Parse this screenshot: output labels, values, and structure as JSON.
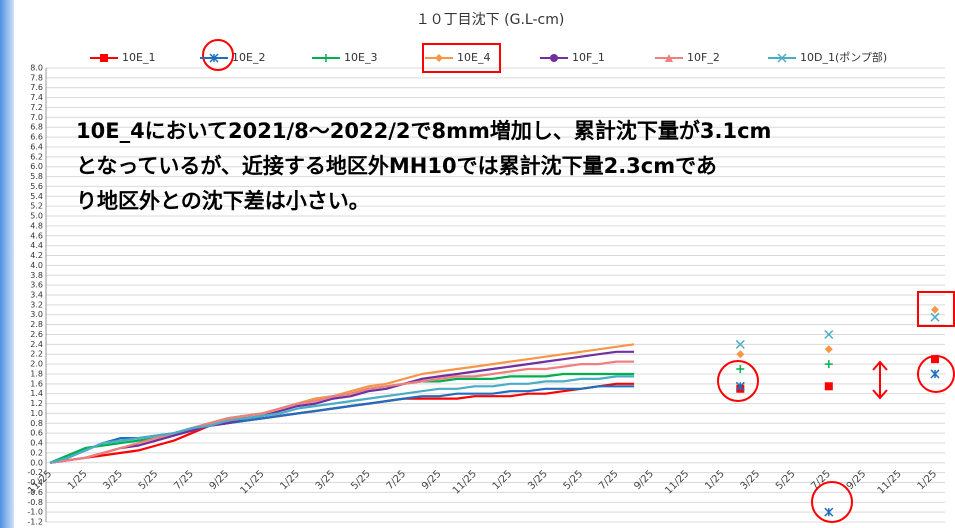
{
  "chart_data": {
    "type": "line",
    "title": "１０丁目沈下 (G.L-cm)",
    "annotation": [
      "10E_4において2021/8～2022/2で8mm増加し、累計沈下量が3.1cm",
      "となっているが、近接する地区外MH10では累計沈下量2.3cmであ",
      "り地区外との沈下差は小さい。"
    ],
    "categories": [
      "11/25",
      null,
      "1/25",
      null,
      "3/25",
      null,
      "5/25",
      null,
      "7/25",
      null,
      "9/25",
      null,
      "11/25",
      null,
      "1/25",
      null,
      "3/25",
      null,
      "5/25",
      null,
      "7/25",
      null,
      "9/25",
      null,
      "11/25",
      null,
      "1/25",
      null,
      "3/25",
      null,
      "5/25",
      null,
      "7/25",
      null,
      "9/25",
      null,
      "11/25",
      null,
      "1/25",
      null,
      "3/25",
      null,
      "5/25",
      null,
      "7/25",
      null,
      "9/25",
      null,
      "11/25",
      null,
      "1/25"
    ],
    "series": [
      {
        "name": "10E_1",
        "color": "#ff0000",
        "marker": "square",
        "values": [
          0,
          0.05,
          0.1,
          0.15,
          0.2,
          0.25,
          0.35,
          0.45,
          0.6,
          0.75,
          0.8,
          0.85,
          0.9,
          0.95,
          1.0,
          1.05,
          1.1,
          1.15,
          1.2,
          1.25,
          1.3,
          1.3,
          1.3,
          1.3,
          1.35,
          1.35,
          1.35,
          1.4,
          1.4,
          1.45,
          1.5,
          1.55,
          1.6,
          1.6,
          null,
          null,
          null,
          null,
          null,
          1.5,
          null,
          null,
          null,
          null,
          1.55,
          null,
          null,
          null,
          null,
          null,
          2.1
        ]
      },
      {
        "name": "10E_2",
        "color": "#1f6fc0",
        "marker": "star",
        "values": [
          0,
          0.1,
          0.25,
          0.4,
          0.5,
          0.5,
          0.55,
          0.6,
          0.65,
          0.75,
          0.8,
          0.85,
          0.9,
          0.95,
          1.0,
          1.05,
          1.1,
          1.15,
          1.2,
          1.25,
          1.3,
          1.35,
          1.35,
          1.4,
          1.4,
          1.4,
          1.45,
          1.45,
          1.5,
          1.5,
          1.5,
          1.55,
          1.55,
          1.55,
          null,
          null,
          null,
          null,
          null,
          1.55,
          null,
          null,
          null,
          null,
          -1.0,
          null,
          null,
          null,
          null,
          null,
          1.8
        ]
      },
      {
        "name": "10E_3",
        "color": "#00b050",
        "marker": "plus",
        "values": [
          0,
          0.15,
          0.3,
          0.35,
          0.4,
          0.45,
          0.5,
          0.6,
          0.7,
          0.8,
          0.9,
          0.95,
          1.0,
          1.1,
          1.2,
          1.3,
          1.35,
          1.4,
          1.5,
          1.55,
          1.6,
          1.65,
          1.65,
          1.7,
          1.7,
          1.7,
          1.75,
          1.75,
          1.75,
          1.8,
          1.8,
          1.8,
          1.8,
          1.8,
          null,
          null,
          null,
          null,
          null,
          1.9,
          null,
          null,
          null,
          null,
          2.0,
          null,
          null,
          null,
          null,
          null,
          null
        ]
      },
      {
        "name": "10E_4",
        "color": "#f79646",
        "marker": "diamond",
        "values": [
          0,
          0.05,
          0.1,
          0.2,
          0.3,
          0.35,
          0.45,
          0.55,
          0.65,
          0.75,
          0.85,
          0.95,
          1.0,
          1.1,
          1.2,
          1.3,
          1.35,
          1.45,
          1.55,
          1.6,
          1.7,
          1.8,
          1.85,
          1.9,
          1.95,
          2.0,
          2.05,
          2.1,
          2.15,
          2.2,
          2.25,
          2.3,
          2.35,
          2.4,
          null,
          null,
          null,
          null,
          null,
          2.2,
          null,
          null,
          null,
          null,
          2.3,
          null,
          null,
          null,
          null,
          null,
          3.1
        ]
      },
      {
        "name": "10F_1",
        "color": "#7030a0",
        "marker": "circle",
        "values": [
          0,
          0.05,
          0.1,
          0.2,
          0.3,
          0.35,
          0.45,
          0.55,
          0.65,
          0.75,
          0.8,
          0.9,
          0.95,
          1.05,
          1.15,
          1.2,
          1.3,
          1.35,
          1.45,
          1.5,
          1.6,
          1.7,
          1.75,
          1.8,
          1.85,
          1.9,
          1.95,
          2.0,
          2.05,
          2.1,
          2.15,
          2.2,
          2.25,
          2.25,
          null,
          null,
          null,
          null,
          null,
          null,
          null,
          null,
          null,
          null,
          null,
          null,
          null,
          null,
          null,
          null,
          null
        ]
      },
      {
        "name": "10F_2",
        "color": "#f08080",
        "marker": "triangle",
        "values": [
          0,
          0.05,
          0.1,
          0.2,
          0.3,
          0.4,
          0.5,
          0.6,
          0.7,
          0.8,
          0.9,
          0.95,
          1.0,
          1.1,
          1.2,
          1.25,
          1.35,
          1.4,
          1.5,
          1.55,
          1.6,
          1.65,
          1.7,
          1.75,
          1.75,
          1.8,
          1.85,
          1.9,
          1.9,
          1.95,
          2.0,
          2.0,
          2.05,
          2.05,
          null,
          null,
          null,
          null,
          null,
          null,
          null,
          null,
          null,
          null,
          null,
          null,
          null,
          null,
          null,
          null,
          null
        ]
      },
      {
        "name": "10D_1(ポンプ部)",
        "color": "#4bacc6",
        "marker": "x",
        "values": [
          0,
          0.1,
          0.25,
          0.4,
          0.45,
          0.5,
          0.55,
          0.6,
          0.7,
          0.75,
          0.85,
          0.9,
          0.95,
          1.0,
          1.1,
          1.15,
          1.2,
          1.25,
          1.3,
          1.35,
          1.4,
          1.45,
          1.5,
          1.5,
          1.55,
          1.55,
          1.6,
          1.6,
          1.65,
          1.65,
          1.7,
          1.7,
          1.75,
          1.75,
          null,
          null,
          null,
          null,
          null,
          2.4,
          null,
          null,
          null,
          null,
          2.6,
          null,
          null,
          null,
          null,
          null,
          2.95
        ]
      }
    ],
    "ylim": [
      -1.2,
      8.0
    ],
    "yticks": [
      {
        "value": 8,
        "label": "8.0"
      },
      {
        "value": 7.8,
        "label": "7.8"
      },
      {
        "value": 7.6,
        "label": "7.6"
      },
      {
        "value": 7.4,
        "label": "7.4"
      },
      {
        "value": 7.2,
        "label": "7.2"
      },
      {
        "value": 7,
        "label": "7.0"
      },
      {
        "value": 6.8,
        "label": "6.8"
      },
      {
        "value": 6.6,
        "label": "6.6"
      },
      {
        "value": 6.4,
        "label": "6.4"
      },
      {
        "value": 6.2,
        "label": "6.2"
      },
      {
        "value": 6,
        "label": "6.0"
      },
      {
        "value": 5.8,
        "label": "5.8"
      },
      {
        "value": 5.6,
        "label": "5.6"
      },
      {
        "value": 5.4,
        "label": "5.4"
      },
      {
        "value": 5.2,
        "label": "5.2"
      },
      {
        "value": 5,
        "label": "5.0"
      },
      {
        "value": 4.8,
        "label": "4.8"
      },
      {
        "value": 4.6,
        "label": "4.6"
      },
      {
        "value": 4.4,
        "label": "4.4"
      },
      {
        "value": 4.2,
        "label": "4.2"
      },
      {
        "value": 4,
        "label": "4.0"
      },
      {
        "value": 3.8,
        "label": "3.8"
      },
      {
        "value": 3.6,
        "label": "3.6"
      },
      {
        "value": 3.4,
        "label": "3.4"
      },
      {
        "value": 3.2,
        "label": "3.2"
      },
      {
        "value": 3,
        "label": "3.0"
      },
      {
        "value": 2.8,
        "label": "2.8"
      },
      {
        "value": 2.6,
        "label": "2.6"
      },
      {
        "value": 2.4,
        "label": "2.4"
      },
      {
        "value": 2.2,
        "label": "2.2"
      },
      {
        "value": 2,
        "label": "2.0"
      },
      {
        "value": 1.8,
        "label": "1.8"
      },
      {
        "value": 1.6,
        "label": "1.6"
      },
      {
        "value": 1.4,
        "label": "1.4"
      },
      {
        "value": 1.2,
        "label": "1.2"
      },
      {
        "value": 1,
        "label": "1.0"
      },
      {
        "value": 0.8,
        "label": "0.8"
      },
      {
        "value": 0.6,
        "label": "0.6"
      },
      {
        "value": 0.4,
        "label": "0.4"
      },
      {
        "value": 0.2,
        "label": "0.2"
      },
      {
        "value": 0,
        "label": "0.0"
      },
      {
        "value": -0.2,
        "label": "-0.2"
      },
      {
        "value": -0.4,
        "label": "-0.4"
      },
      {
        "value": -0.6,
        "label": "-0.6"
      },
      {
        "value": -0.8,
        "label": "-0.8"
      },
      {
        "value": -1,
        "label": "-1.0"
      },
      {
        "value": -1.2,
        "label": "-1.2"
      }
    ],
    "grid": true,
    "legend": "top"
  }
}
